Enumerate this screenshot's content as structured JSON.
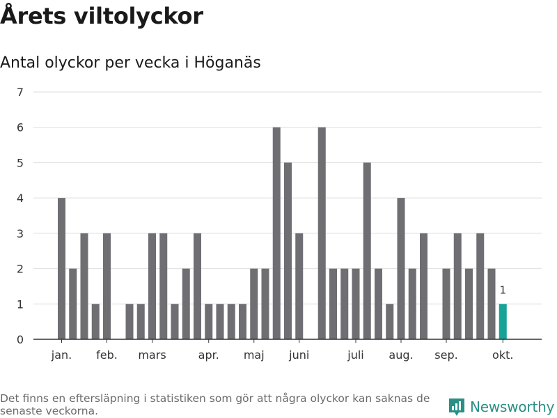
{
  "header": {
    "title": "Årets viltolyckor",
    "subtitle": "Antal olyckor per vecka i Höganäs"
  },
  "footer": {
    "note": "Det finns en eftersläpning i statistiken som gör att några olyckor kan saknas de senaste veckorna.",
    "brand": "Newsworthy",
    "brand_icon": "newsworthy-logo-icon"
  },
  "colors": {
    "bar": "#6e6e73",
    "highlight": "#17a398",
    "grid": "#dedede",
    "axis": "#333333",
    "brand": "#2a8f86"
  },
  "chart_data": {
    "type": "bar",
    "title": "Antal olyckor per vecka i Höganäs",
    "xlabel": "",
    "ylabel": "",
    "ylim": [
      0,
      7
    ],
    "yticks": [
      0,
      1,
      2,
      3,
      4,
      5,
      6,
      7
    ],
    "grid": true,
    "weeks": [
      1,
      2,
      3,
      4,
      5,
      6,
      7,
      8,
      9,
      10,
      11,
      12,
      13,
      14,
      15,
      16,
      17,
      18,
      19,
      20,
      21,
      22,
      23,
      24,
      25,
      26,
      27,
      28,
      29,
      30,
      31,
      32,
      33,
      34,
      35,
      36,
      37,
      38,
      39,
      40,
      41,
      42
    ],
    "values": [
      0,
      0,
      4,
      2,
      3,
      1,
      3,
      0,
      1,
      1,
      3,
      3,
      1,
      2,
      3,
      1,
      1,
      1,
      1,
      2,
      2,
      6,
      5,
      3,
      0,
      6,
      2,
      2,
      2,
      5,
      2,
      1,
      4,
      2,
      3,
      0,
      2,
      3,
      2,
      3,
      2,
      1
    ],
    "highlight_last": true,
    "last_value_label": "1",
    "month_labels": [
      {
        "label": "jan.",
        "week": 3
      },
      {
        "label": "feb.",
        "week": 7
      },
      {
        "label": "mars",
        "week": 11
      },
      {
        "label": "apr.",
        "week": 16
      },
      {
        "label": "maj",
        "week": 20
      },
      {
        "label": "juni",
        "week": 24
      },
      {
        "label": "juli",
        "week": 29
      },
      {
        "label": "aug.",
        "week": 33
      },
      {
        "label": "sep.",
        "week": 37
      },
      {
        "label": "okt.",
        "week": 42
      }
    ]
  }
}
